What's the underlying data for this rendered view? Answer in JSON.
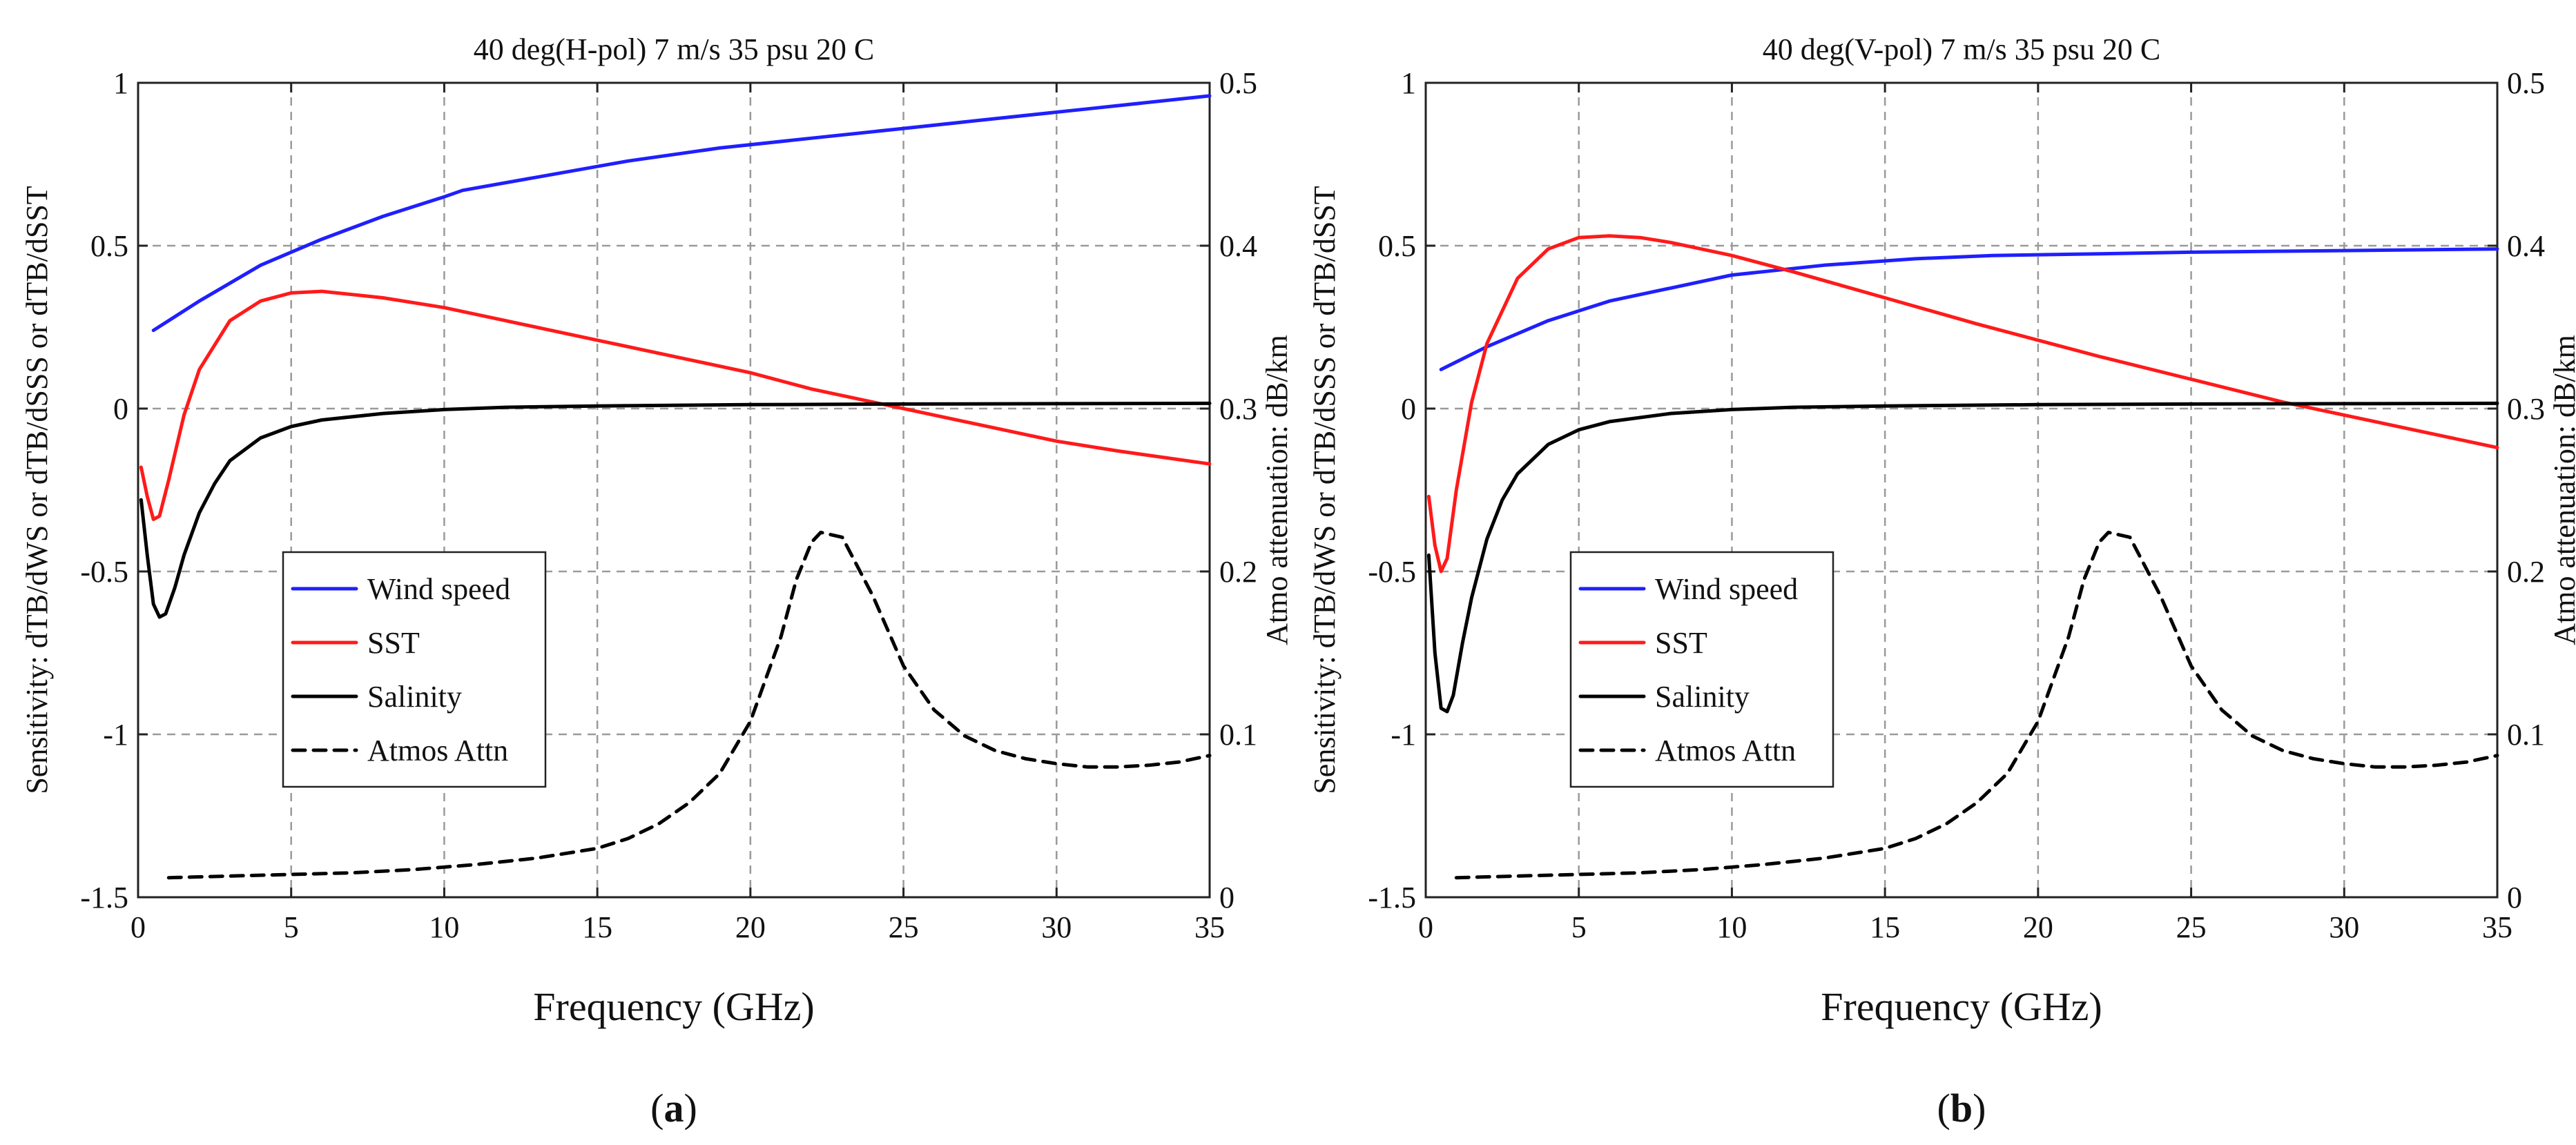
{
  "colors": {
    "wind_speed": "#1f1fff",
    "sst": "#ff1a1a",
    "salinity": "#000000",
    "atmos_attn": "#000000",
    "grid": "#9a9a9a"
  },
  "chart_data": [
    {
      "type": "line",
      "panel_label": "a",
      "title": "40 deg(H-pol) 7 m/s 35 psu 20 C",
      "xlabel": "Frequency (GHz)",
      "ylabel": "Sensitivity: dTB/dWS or dTB/dSSS or dTB/dSST",
      "y2label": "Atmo attenuation: dB/km",
      "xlim": [
        0,
        35
      ],
      "ylim": [
        -1.5,
        1
      ],
      "y2lim": [
        0,
        0.5
      ],
      "xticks": [
        0,
        5,
        10,
        15,
        20,
        25,
        30,
        35
      ],
      "yticks": [
        -1.5,
        -1,
        -0.5,
        0,
        0.5,
        1
      ],
      "y2ticks": [
        0,
        0.1,
        0.2,
        0.3,
        0.4,
        0.5
      ],
      "xtick_labels": [
        "0",
        "5",
        "10",
        "15",
        "20",
        "25",
        "30",
        "35"
      ],
      "ytick_labels": [
        "-1.5",
        "-1",
        "-0.5",
        "0",
        "0.5",
        "1"
      ],
      "y2tick_labels": [
        "0",
        "0.1",
        "0.2",
        "0.3",
        "0.4",
        "0.5"
      ],
      "grid": true,
      "legend": {
        "placement": "lower-left",
        "entries": [
          "Wind speed",
          "SST",
          "Salinity",
          "Atmos Attn"
        ]
      },
      "series": [
        {
          "name": "Wind speed",
          "axis": "left",
          "style": "solid",
          "color_key": "wind_speed",
          "x": [
            0.5,
            2,
            4,
            6,
            8,
            10,
            10.6,
            13,
            16,
            19,
            22,
            25,
            28,
            31,
            35
          ],
          "y": [
            0.24,
            0.33,
            0.44,
            0.52,
            0.59,
            0.65,
            0.67,
            0.71,
            0.76,
            0.8,
            0.83,
            0.86,
            0.89,
            0.92,
            0.96
          ]
        },
        {
          "name": "SST",
          "axis": "left",
          "style": "solid",
          "color_key": "sst",
          "x": [
            0.1,
            0.3,
            0.5,
            0.7,
            1,
            1.5,
            2,
            3,
            4,
            5,
            6,
            8,
            10,
            12,
            15,
            18,
            20,
            22,
            24,
            26,
            28,
            30,
            32,
            35
          ],
          "y": [
            -0.18,
            -0.27,
            -0.34,
            -0.33,
            -0.22,
            -0.02,
            0.12,
            0.27,
            0.33,
            0.355,
            0.36,
            0.34,
            0.31,
            0.27,
            0.21,
            0.15,
            0.11,
            0.06,
            0.02,
            -0.02,
            -0.06,
            -0.1,
            -0.13,
            -0.17
          ]
        },
        {
          "name": "Salinity",
          "axis": "left",
          "style": "solid",
          "color_key": "salinity",
          "x": [
            0.1,
            0.3,
            0.5,
            0.7,
            0.9,
            1.2,
            1.5,
            2,
            2.5,
            3,
            4,
            5,
            6,
            8,
            10,
            12,
            15,
            20,
            25,
            30,
            35
          ],
          "y": [
            -0.28,
            -0.45,
            -0.6,
            -0.64,
            -0.63,
            -0.55,
            -0.45,
            -0.32,
            -0.23,
            -0.16,
            -0.09,
            -0.055,
            -0.035,
            -0.015,
            -0.003,
            0.004,
            0.008,
            0.012,
            0.014,
            0.015,
            0.016
          ]
        },
        {
          "name": "Atmos Attn",
          "axis": "right",
          "style": "dashed",
          "color_key": "atmos_attn",
          "x": [
            1,
            3,
            5,
            7,
            9,
            11,
            13,
            15,
            16,
            17,
            18,
            19,
            20,
            21,
            21.5,
            22,
            22.3,
            23,
            24,
            25,
            26,
            27,
            28,
            29,
            30,
            31,
            32,
            33,
            34,
            35
          ],
          "y": [
            0.012,
            0.013,
            0.014,
            0.015,
            0.017,
            0.02,
            0.024,
            0.03,
            0.036,
            0.045,
            0.058,
            0.076,
            0.108,
            0.16,
            0.195,
            0.218,
            0.224,
            0.221,
            0.185,
            0.142,
            0.115,
            0.099,
            0.09,
            0.085,
            0.082,
            0.08,
            0.08,
            0.081,
            0.083,
            0.087
          ]
        }
      ]
    },
    {
      "type": "line",
      "panel_label": "b",
      "title": "40 deg(V-pol) 7 m/s 35 psu 20 C",
      "xlabel": "Frequency (GHz)",
      "ylabel": "Sensitivity: dTB/dWS or dTB/dSSS or dTB/dSST",
      "y2label": "Atmo attenuation: dB/km",
      "xlim": [
        0,
        35
      ],
      "ylim": [
        -1.5,
        1
      ],
      "y2lim": [
        0,
        0.5
      ],
      "xticks": [
        0,
        5,
        10,
        15,
        20,
        25,
        30,
        35
      ],
      "yticks": [
        -1.5,
        -1,
        -0.5,
        0,
        0.5,
        1
      ],
      "y2ticks": [
        0,
        0.1,
        0.2,
        0.3,
        0.4,
        0.5
      ],
      "xtick_labels": [
        "0",
        "5",
        "10",
        "15",
        "20",
        "25",
        "30",
        "35"
      ],
      "ytick_labels": [
        "-1.5",
        "-1",
        "-0.5",
        "0",
        "0.5",
        "1"
      ],
      "y2tick_labels": [
        "0",
        "0.1",
        "0.2",
        "0.3",
        "0.4",
        "0.5"
      ],
      "grid": true,
      "legend": {
        "placement": "lower-left",
        "entries": [
          "Wind speed",
          "SST",
          "Salinity",
          "Atmos Attn"
        ]
      },
      "series": [
        {
          "name": "Wind speed",
          "axis": "left",
          "style": "solid",
          "color_key": "wind_speed",
          "x": [
            0.5,
            2,
            4,
            6,
            8,
            10,
            11,
            13,
            16,
            18.5,
            22,
            25,
            28,
            31,
            35
          ],
          "y": [
            0.12,
            0.19,
            0.27,
            0.33,
            0.37,
            0.41,
            0.42,
            0.44,
            0.46,
            0.47,
            0.475,
            0.48,
            0.483,
            0.486,
            0.49
          ]
        },
        {
          "name": "SST",
          "axis": "left",
          "style": "solid",
          "color_key": "sst",
          "x": [
            0.1,
            0.3,
            0.5,
            0.7,
            1,
            1.5,
            2,
            3,
            4,
            5,
            6,
            7,
            8,
            10,
            12,
            15,
            18,
            20,
            22,
            25,
            28,
            30,
            32,
            35
          ],
          "y": [
            -0.27,
            -0.42,
            -0.5,
            -0.46,
            -0.25,
            0.02,
            0.2,
            0.4,
            0.49,
            0.525,
            0.53,
            0.525,
            0.51,
            0.47,
            0.42,
            0.34,
            0.26,
            0.21,
            0.16,
            0.09,
            0.02,
            -0.02,
            -0.06,
            -0.12
          ]
        },
        {
          "name": "Salinity",
          "axis": "left",
          "style": "solid",
          "color_key": "salinity",
          "x": [
            0.1,
            0.3,
            0.5,
            0.7,
            0.9,
            1.2,
            1.5,
            2,
            2.5,
            3,
            4,
            5,
            6,
            8,
            10,
            12,
            15,
            20,
            25,
            30,
            35
          ],
          "y": [
            -0.45,
            -0.75,
            -0.92,
            -0.93,
            -0.88,
            -0.72,
            -0.58,
            -0.4,
            -0.28,
            -0.2,
            -0.11,
            -0.065,
            -0.04,
            -0.015,
            -0.003,
            0.004,
            0.008,
            0.012,
            0.014,
            0.015,
            0.016
          ]
        },
        {
          "name": "Atmos Attn",
          "axis": "right",
          "style": "dashed",
          "color_key": "atmos_attn",
          "x": [
            1,
            3,
            5,
            7,
            9,
            11,
            13,
            15,
            16,
            17,
            18,
            19,
            20,
            21,
            21.5,
            22,
            22.3,
            23,
            24,
            25,
            26,
            27,
            28,
            29,
            30,
            31,
            32,
            33,
            34,
            35
          ],
          "y": [
            0.012,
            0.013,
            0.014,
            0.015,
            0.017,
            0.02,
            0.024,
            0.03,
            0.036,
            0.045,
            0.058,
            0.076,
            0.108,
            0.16,
            0.195,
            0.218,
            0.224,
            0.221,
            0.185,
            0.142,
            0.115,
            0.099,
            0.09,
            0.085,
            0.082,
            0.08,
            0.08,
            0.081,
            0.083,
            0.087
          ]
        }
      ]
    }
  ]
}
